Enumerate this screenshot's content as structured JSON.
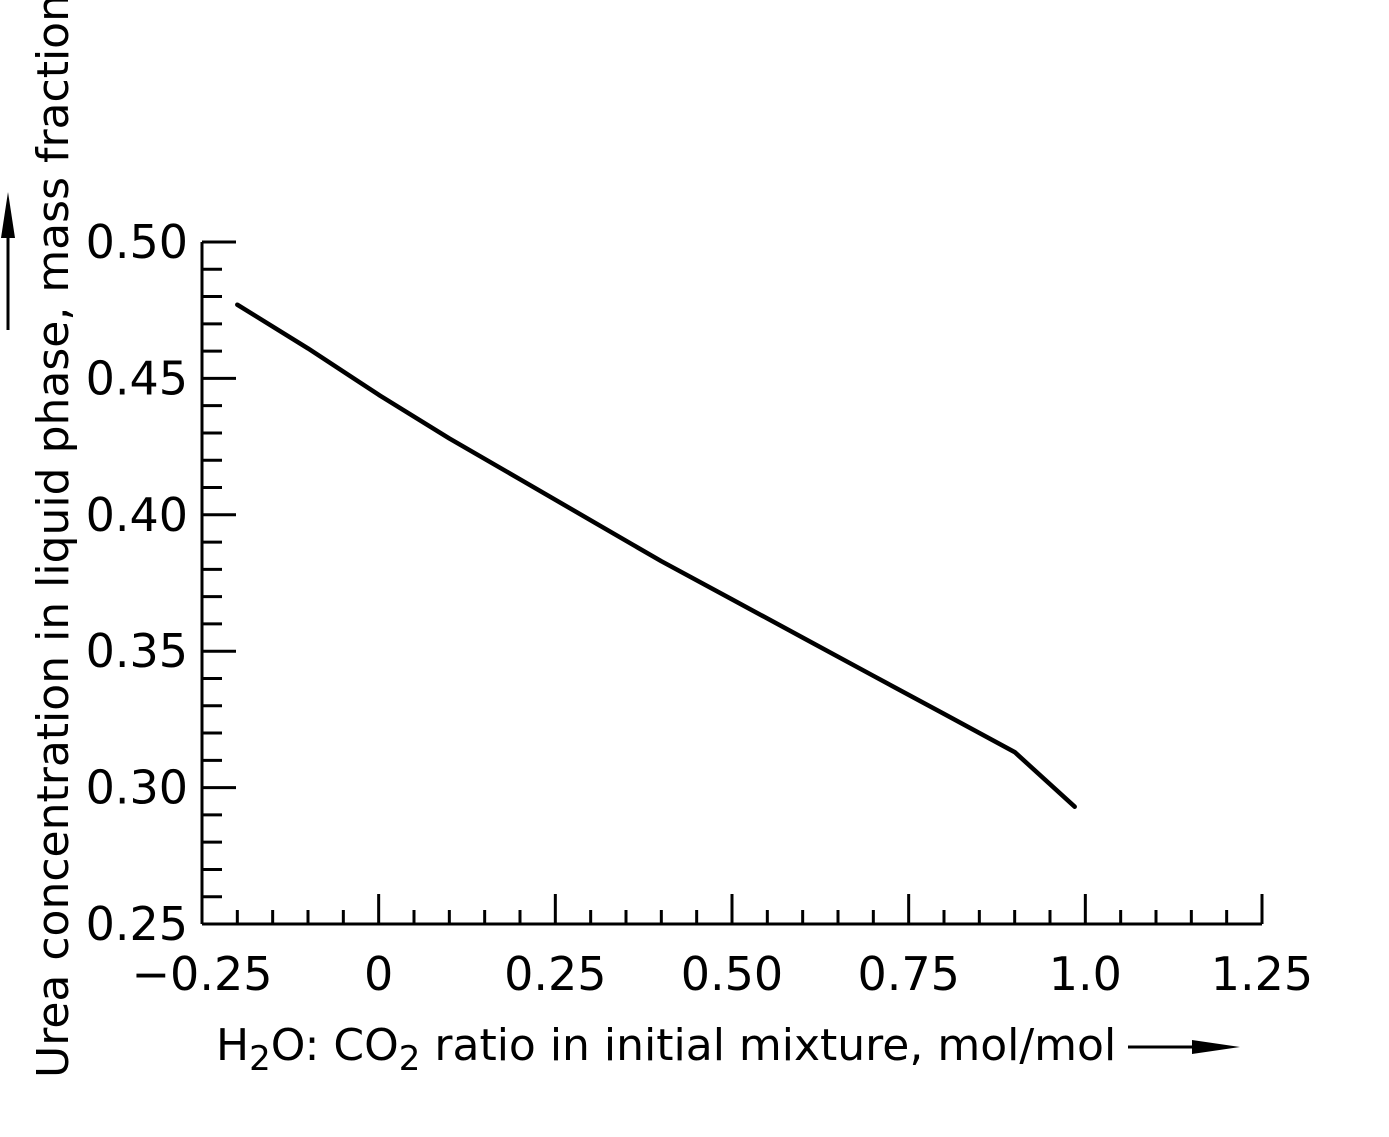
{
  "chart_data": {
    "type": "line",
    "title": "",
    "xlabel": {
      "parts": [
        {
          "text": "H",
          "sub": false
        },
        {
          "text": "2",
          "sub": true
        },
        {
          "text": "O: CO",
          "sub": false
        },
        {
          "text": "2",
          "sub": true
        },
        {
          "text": " ratio in initial mixture, mol/mol",
          "sub": false
        }
      ]
    },
    "ylabel": "Urea concentration in liquid phase, mass fraction",
    "xlim": [
      -0.25,
      1.25
    ],
    "ylim": [
      0.25,
      0.5
    ],
    "x_ticks": [
      -0.25,
      0,
      0.25,
      0.5,
      0.75,
      1.0,
      1.25
    ],
    "x_tick_labels": [
      "−0.25",
      "0",
      "0.25",
      "0.50",
      "0.75",
      "1.0",
      "1.25"
    ],
    "y_ticks": [
      0.25,
      0.3,
      0.35,
      0.4,
      0.45,
      0.5
    ],
    "y_tick_labels": [
      "0.25",
      "0.30",
      "0.35",
      "0.40",
      "0.45",
      "0.50"
    ],
    "x_minor_step": 0.05,
    "y_minor_step": 0.01,
    "grid": false,
    "series": [
      {
        "x": [
          -0.2,
          -0.1,
          0.0,
          0.1,
          0.2,
          0.3,
          0.4,
          0.5,
          0.6,
          0.7,
          0.8,
          0.9,
          0.985
        ],
        "values": [
          0.477,
          0.461,
          0.444,
          0.428,
          0.413,
          0.398,
          0.383,
          0.369,
          0.355,
          0.341,
          0.327,
          0.313,
          0.293
        ]
      }
    ],
    "line_color": "#000000"
  }
}
